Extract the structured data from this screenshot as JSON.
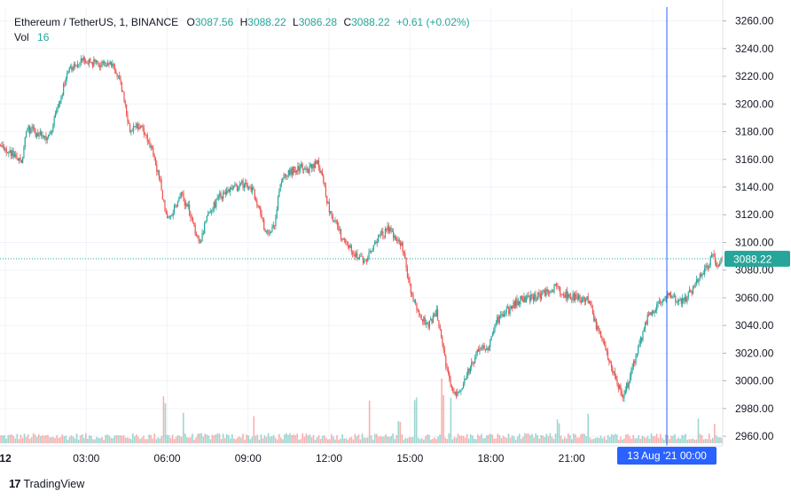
{
  "legend": {
    "symbol": "Ethereum / TetherUS, 1, BINANCE",
    "o_label": "O",
    "o_value": "3087.56",
    "h_label": "H",
    "h_value": "3088.22",
    "l_label": "L",
    "l_value": "3086.28",
    "c_label": "C",
    "c_value": "3088.22",
    "change": "+0.61 (+0.02%)",
    "vol_label": "Vol",
    "vol_value": "16"
  },
  "branding": {
    "logo_text": "TradingView",
    "logo_mark": "17"
  },
  "colors": {
    "up": "#26a69a",
    "down": "#ef5350",
    "crosshair": "#2962ff",
    "price_tag": "#26a69a",
    "grid": "#f0f3fa"
  },
  "crosshair_label": "13 Aug '21  00:00",
  "chart_data": {
    "type": "candlestick",
    "interval": "1 minute",
    "price_axis": {
      "ticks": [
        2960,
        2980,
        3000,
        3020,
        3040,
        3060,
        3080,
        3100,
        3120,
        3140,
        3160,
        3180,
        3200,
        3220,
        3240,
        3260
      ],
      "range": [
        2953,
        3270
      ]
    },
    "time_axis": {
      "labels": [
        "12",
        "03:00",
        "06:00",
        "09:00",
        "12:00",
        "15:00",
        "18:00",
        "21:00"
      ],
      "range_hours": [
        -0.2,
        26.6
      ]
    },
    "last_price": 3088.22,
    "price_path": [
      {
        "t": -0.2,
        "p": 3170
      },
      {
        "t": 0.3,
        "p": 3163
      },
      {
        "t": 0.6,
        "p": 3158
      },
      {
        "t": 0.8,
        "p": 3183
      },
      {
        "t": 1.2,
        "p": 3178
      },
      {
        "t": 1.6,
        "p": 3175
      },
      {
        "t": 1.9,
        "p": 3195
      },
      {
        "t": 2.3,
        "p": 3222
      },
      {
        "t": 2.8,
        "p": 3232
      },
      {
        "t": 3.2,
        "p": 3230
      },
      {
        "t": 3.6,
        "p": 3228
      },
      {
        "t": 4.0,
        "p": 3228
      },
      {
        "t": 4.3,
        "p": 3212
      },
      {
        "t": 4.6,
        "p": 3182
      },
      {
        "t": 5.0,
        "p": 3185
      },
      {
        "t": 5.3,
        "p": 3175
      },
      {
        "t": 5.7,
        "p": 3148
      },
      {
        "t": 6.0,
        "p": 3115
      },
      {
        "t": 6.5,
        "p": 3135
      },
      {
        "t": 6.8,
        "p": 3124
      },
      {
        "t": 7.0,
        "p": 3110
      },
      {
        "t": 7.2,
        "p": 3100
      },
      {
        "t": 7.5,
        "p": 3118
      },
      {
        "t": 7.9,
        "p": 3133
      },
      {
        "t": 8.3,
        "p": 3137
      },
      {
        "t": 8.8,
        "p": 3142
      },
      {
        "t": 9.2,
        "p": 3137
      },
      {
        "t": 9.5,
        "p": 3118
      },
      {
        "t": 9.7,
        "p": 3105
      },
      {
        "t": 10.0,
        "p": 3115
      },
      {
        "t": 10.2,
        "p": 3145
      },
      {
        "t": 10.5,
        "p": 3150
      },
      {
        "t": 10.9,
        "p": 3155
      },
      {
        "t": 11.2,
        "p": 3152
      },
      {
        "t": 11.6,
        "p": 3158
      },
      {
        "t": 12.0,
        "p": 3125
      },
      {
        "t": 12.5,
        "p": 3102
      },
      {
        "t": 13.0,
        "p": 3092
      },
      {
        "t": 13.3,
        "p": 3085
      },
      {
        "t": 13.7,
        "p": 3100
      },
      {
        "t": 14.2,
        "p": 3110
      },
      {
        "t": 14.7,
        "p": 3098
      },
      {
        "t": 15.0,
        "p": 3068
      },
      {
        "t": 15.4,
        "p": 3045
      },
      {
        "t": 15.7,
        "p": 3040
      },
      {
        "t": 16.0,
        "p": 3050
      },
      {
        "t": 16.3,
        "p": 3015
      },
      {
        "t": 16.6,
        "p": 2990
      },
      {
        "t": 16.9,
        "p": 2995
      },
      {
        "t": 17.1,
        "p": 3005
      },
      {
        "t": 17.5,
        "p": 3020
      },
      {
        "t": 17.9,
        "p": 3025
      },
      {
        "t": 18.2,
        "p": 3043
      },
      {
        "t": 18.6,
        "p": 3050
      },
      {
        "t": 19.0,
        "p": 3058
      },
      {
        "t": 19.5,
        "p": 3060
      },
      {
        "t": 20.0,
        "p": 3063
      },
      {
        "t": 20.4,
        "p": 3068
      },
      {
        "t": 20.8,
        "p": 3062
      },
      {
        "t": 21.2,
        "p": 3060
      },
      {
        "t": 21.6,
        "p": 3058
      },
      {
        "t": 21.9,
        "p": 3040
      },
      {
        "t": 22.3,
        "p": 3020
      },
      {
        "t": 22.7,
        "p": 2998
      },
      {
        "t": 22.9,
        "p": 2988
      },
      {
        "t": 23.2,
        "p": 3005
      },
      {
        "t": 23.5,
        "p": 3025
      },
      {
        "t": 23.8,
        "p": 3045
      },
      {
        "t": 24.2,
        "p": 3055
      },
      {
        "t": 24.6,
        "p": 3062
      },
      {
        "t": 24.9,
        "p": 3057
      },
      {
        "t": 25.2,
        "p": 3058
      },
      {
        "t": 25.6,
        "p": 3070
      },
      {
        "t": 26.0,
        "p": 3082
      },
      {
        "t": 26.2,
        "p": 3090
      },
      {
        "t": 26.4,
        "p": 3084
      },
      {
        "t": 26.6,
        "p": 3088
      }
    ],
    "volume_spikes": [
      {
        "t": 5.9,
        "v": 12
      },
      {
        "t": 6.6,
        "v": 9
      },
      {
        "t": 9.2,
        "v": 8
      },
      {
        "t": 13.5,
        "v": 12
      },
      {
        "t": 14.6,
        "v": 7
      },
      {
        "t": 15.2,
        "v": 11
      },
      {
        "t": 16.2,
        "v": 16
      },
      {
        "t": 16.5,
        "v": 13
      },
      {
        "t": 20.5,
        "v": 6
      },
      {
        "t": 21.6,
        "v": 7
      },
      {
        "t": 25.7,
        "v": 7
      },
      {
        "t": 26.3,
        "v": 6
      }
    ]
  }
}
